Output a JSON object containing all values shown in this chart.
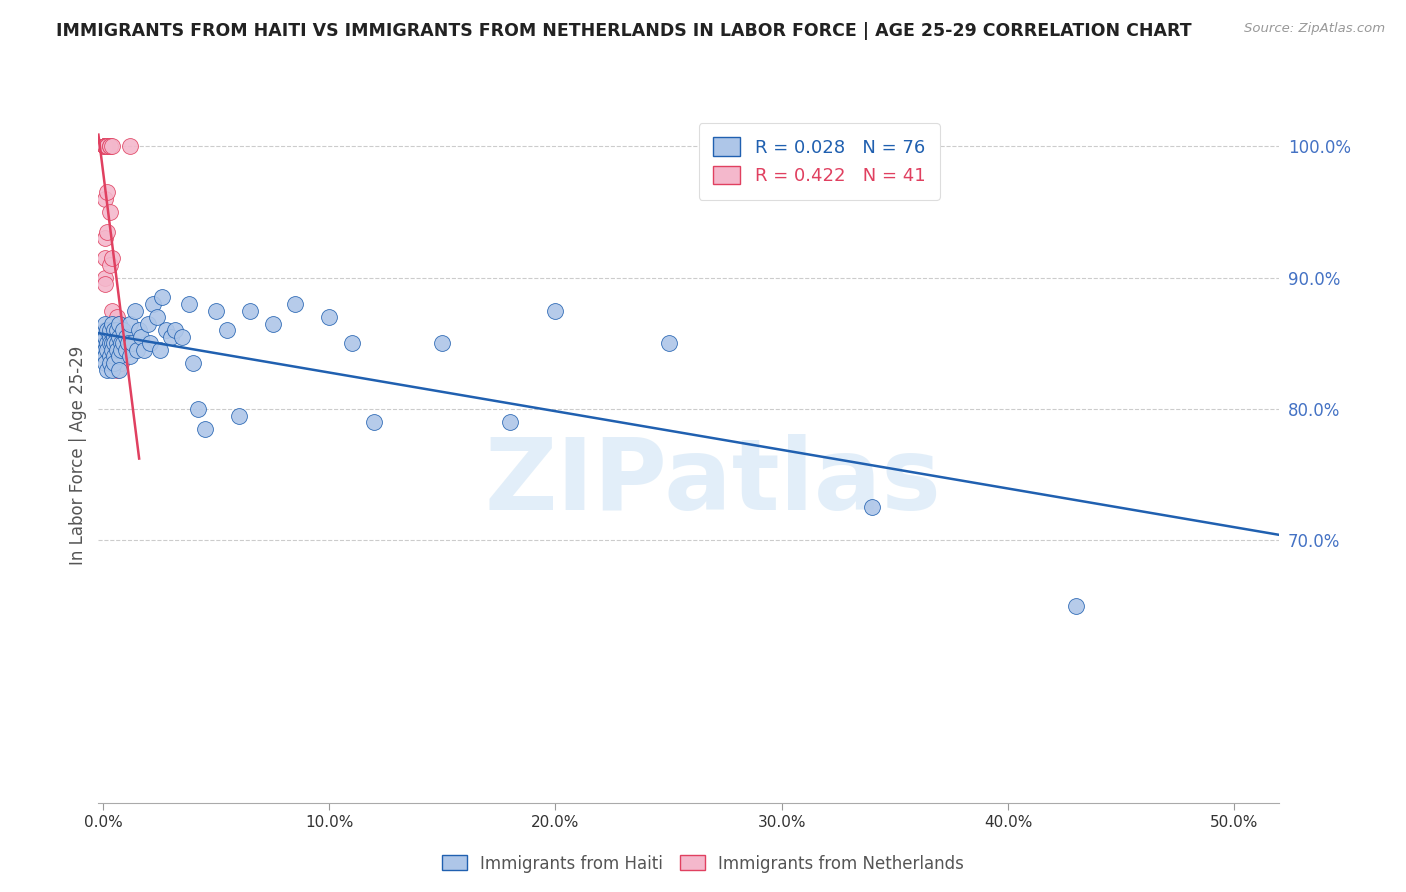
{
  "title": "IMMIGRANTS FROM HAITI VS IMMIGRANTS FROM NETHERLANDS IN LABOR FORCE | AGE 25-29 CORRELATION CHART",
  "source": "Source: ZipAtlas.com",
  "ylabel": "In Labor Force | Age 25-29",
  "ymin": 50.0,
  "ymax": 103.0,
  "xmin": -0.002,
  "xmax": 0.52,
  "color_haiti": "#aec6e8",
  "color_netherlands": "#f4b8cc",
  "line_haiti": "#2060b0",
  "line_netherlands": "#e04060",
  "watermark_text": "ZIPatlas",
  "haiti_x": [
    0.001,
    0.001,
    0.001,
    0.001,
    0.001,
    0.001,
    0.001,
    0.002,
    0.002,
    0.002,
    0.002,
    0.003,
    0.003,
    0.003,
    0.003,
    0.003,
    0.004,
    0.004,
    0.004,
    0.004,
    0.005,
    0.005,
    0.005,
    0.005,
    0.005,
    0.006,
    0.006,
    0.006,
    0.007,
    0.007,
    0.007,
    0.007,
    0.008,
    0.008,
    0.009,
    0.009,
    0.01,
    0.01,
    0.011,
    0.012,
    0.012,
    0.013,
    0.014,
    0.015,
    0.016,
    0.017,
    0.018,
    0.02,
    0.021,
    0.022,
    0.024,
    0.025,
    0.026,
    0.028,
    0.03,
    0.032,
    0.035,
    0.038,
    0.04,
    0.042,
    0.045,
    0.05,
    0.055,
    0.06,
    0.065,
    0.075,
    0.085,
    0.1,
    0.11,
    0.12,
    0.15,
    0.18,
    0.2,
    0.25,
    0.34,
    0.43
  ],
  "haiti_y": [
    86.0,
    85.0,
    84.5,
    85.5,
    84.0,
    86.5,
    83.5,
    85.0,
    86.0,
    84.5,
    83.0,
    85.5,
    86.0,
    84.0,
    85.0,
    83.5,
    85.0,
    86.5,
    84.5,
    83.0,
    85.5,
    86.0,
    84.0,
    85.0,
    83.5,
    85.0,
    86.0,
    84.5,
    84.0,
    85.5,
    83.0,
    86.5,
    85.0,
    84.5,
    85.0,
    86.0,
    84.5,
    85.5,
    85.0,
    84.0,
    86.5,
    85.0,
    87.5,
    84.5,
    86.0,
    85.5,
    84.5,
    86.5,
    85.0,
    88.0,
    87.0,
    84.5,
    88.5,
    86.0,
    85.5,
    86.0,
    85.5,
    88.0,
    83.5,
    80.0,
    78.5,
    87.5,
    86.0,
    79.5,
    87.5,
    86.5,
    88.0,
    87.0,
    85.0,
    79.0,
    85.0,
    79.0,
    87.5,
    85.0,
    72.5,
    65.0
  ],
  "netherlands_x": [
    0.001,
    0.001,
    0.001,
    0.001,
    0.001,
    0.001,
    0.001,
    0.001,
    0.001,
    0.001,
    0.001,
    0.001,
    0.001,
    0.001,
    0.001,
    0.002,
    0.002,
    0.002,
    0.002,
    0.002,
    0.003,
    0.003,
    0.003,
    0.003,
    0.004,
    0.004,
    0.004,
    0.004,
    0.005,
    0.005,
    0.005,
    0.006,
    0.006,
    0.007,
    0.007,
    0.007,
    0.008,
    0.008,
    0.009,
    0.01,
    0.012
  ],
  "netherlands_y": [
    100.0,
    100.0,
    100.0,
    100.0,
    100.0,
    100.0,
    100.0,
    100.0,
    100.0,
    100.0,
    96.0,
    93.0,
    91.5,
    90.0,
    89.5,
    100.0,
    100.0,
    100.0,
    96.5,
    93.5,
    100.0,
    100.0,
    95.0,
    91.0,
    100.0,
    91.5,
    87.5,
    85.0,
    86.5,
    85.5,
    84.0,
    87.0,
    83.0,
    86.5,
    85.0,
    84.0,
    86.0,
    83.5,
    85.5,
    85.0,
    100.0
  ],
  "netherlands_line_x0": -0.002,
  "netherlands_line_x1": 0.016,
  "haiti_line_x0": -0.002,
  "haiti_line_x1": 0.52
}
